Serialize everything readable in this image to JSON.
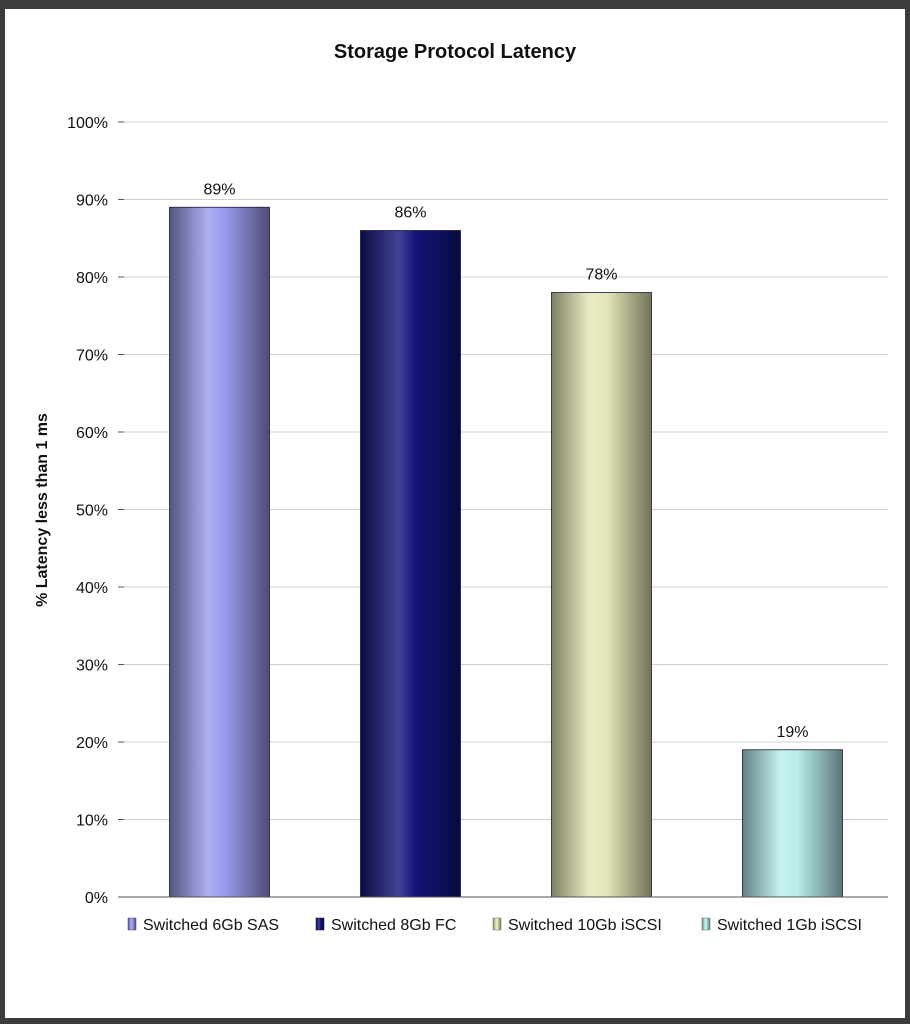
{
  "chart_data": {
    "type": "bar",
    "title": "Storage Protocol Latency",
    "ylabel": "% Latency less than 1 ms",
    "xlabel": "",
    "categories": [
      "Switched 6Gb SAS",
      "Switched 8Gb FC",
      "Switched 10Gb iSCSI",
      "Switched 1Gb iSCSI"
    ],
    "values": [
      89,
      86,
      78,
      19
    ],
    "data_labels": [
      "89%",
      "86%",
      "78%",
      "19%"
    ],
    "ylim": [
      0,
      100
    ],
    "yticks": [
      0,
      10,
      20,
      30,
      40,
      50,
      60,
      70,
      80,
      90,
      100
    ],
    "ytick_labels": [
      "0%",
      "10%",
      "20%",
      "30%",
      "40%",
      "50%",
      "60%",
      "70%",
      "80%",
      "90%",
      "100%"
    ],
    "grid": true,
    "legend_position": "bottom",
    "colors": [
      "#9a9aee",
      "#14147a",
      "#e6e6b8",
      "#b8ecec"
    ]
  }
}
